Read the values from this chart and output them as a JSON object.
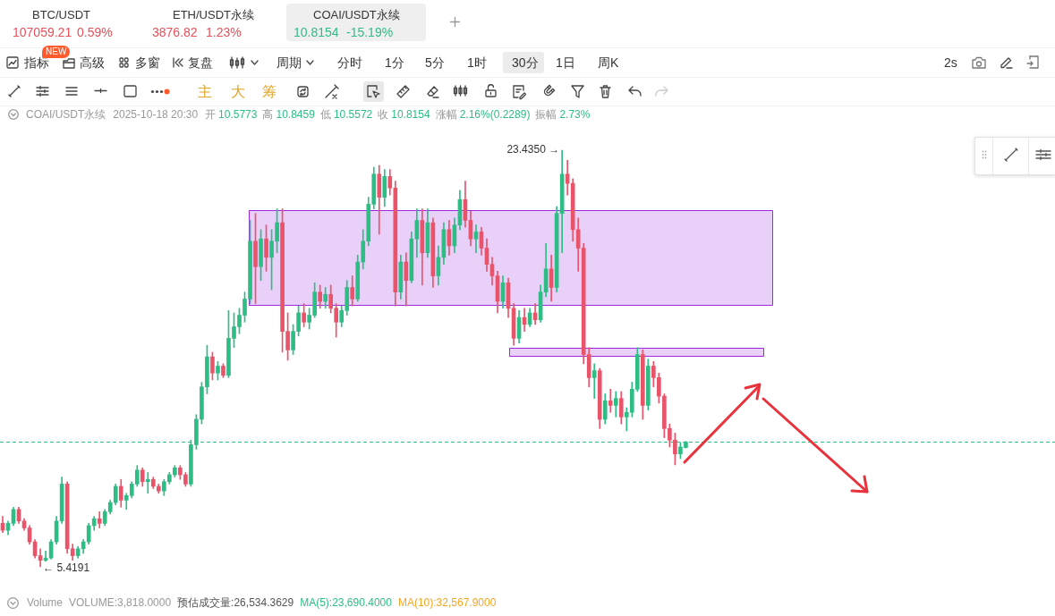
{
  "chart_data": {
    "type": "candlestick",
    "categories": [
      null,
      null,
      null,
      null,
      null,
      null,
      null,
      null,
      null,
      null,
      null,
      null,
      null,
      null,
      null,
      null,
      null,
      null,
      null,
      null,
      null,
      null,
      null,
      null,
      null,
      null,
      null,
      null,
      null,
      null,
      null,
      null,
      null,
      null,
      null,
      null,
      null,
      null,
      null,
      null,
      null,
      null,
      null,
      null,
      null,
      null,
      null,
      null,
      null,
      null,
      null,
      null,
      null,
      null,
      null,
      null,
      null,
      null,
      null,
      null,
      null,
      null,
      null,
      null,
      null,
      null,
      null,
      null,
      null,
      null,
      null,
      null,
      null,
      null,
      null,
      null,
      null,
      null,
      null,
      null,
      null,
      null,
      null,
      null,
      null,
      null,
      null,
      null,
      null,
      null,
      null,
      null,
      null,
      null,
      null,
      null,
      null,
      null,
      null,
      null,
      null,
      null,
      null,
      null,
      null,
      null,
      null,
      null,
      null,
      null,
      null,
      null,
      null,
      null,
      null,
      null,
      null,
      null,
      null,
      null,
      null,
      null,
      null,
      null,
      null,
      null,
      null,
      null,
      null,
      null,
      null,
      null,
      null,
      null,
      null,
      null,
      null,
      null,
      null,
      null,
      null,
      null,
      null,
      null,
      null,
      null,
      null,
      null,
      null,
      null,
      null,
      null,
      null,
      null,
      null,
      null,
      null,
      null,
      null,
      null,
      null,
      null,
      null,
      null,
      null,
      null,
      null,
      null,
      null,
      null,
      null,
      null,
      null,
      null,
      null,
      null,
      null,
      null,
      null,
      null,
      null
    ],
    "ohlc": [
      [
        7.3,
        7.6,
        6.9,
        7.0
      ],
      [
        7.0,
        7.4,
        6.8,
        7.3
      ],
      [
        7.3,
        8.0,
        7.2,
        7.9
      ],
      [
        7.9,
        8.0,
        7.3,
        7.4
      ],
      [
        7.4,
        7.5,
        7.0,
        7.1
      ],
      [
        7.1,
        7.2,
        6.4,
        6.5
      ],
      [
        6.5,
        6.6,
        5.8,
        5.9
      ],
      [
        5.9,
        6.2,
        5.4191,
        5.7
      ],
      [
        5.7,
        6.1,
        5.65,
        5.8
      ],
      [
        5.8,
        6.6,
        5.75,
        6.5
      ],
      [
        6.5,
        7.6,
        6.4,
        7.4
      ],
      [
        7.4,
        9.3,
        7.3,
        9.0
      ],
      [
        9.0,
        9.1,
        6.0,
        6.2
      ],
      [
        6.2,
        6.4,
        5.7,
        5.9
      ],
      [
        5.9,
        6.3,
        5.8,
        6.2
      ],
      [
        6.2,
        6.6,
        6.0,
        6.5
      ],
      [
        6.5,
        7.3,
        6.4,
        7.2
      ],
      [
        7.2,
        7.6,
        7.0,
        7.5
      ],
      [
        7.5,
        7.8,
        7.1,
        7.3
      ],
      [
        7.3,
        7.9,
        7.2,
        7.8
      ],
      [
        7.8,
        8.3,
        7.7,
        8.2
      ],
      [
        8.2,
        9.0,
        8.1,
        8.9
      ],
      [
        8.9,
        9.2,
        8.0,
        8.3
      ],
      [
        8.3,
        8.6,
        7.9,
        8.5
      ],
      [
        8.5,
        9.1,
        8.4,
        9.0
      ],
      [
        9.0,
        9.8,
        8.9,
        9.6
      ],
      [
        9.6,
        9.7,
        8.9,
        9.1
      ],
      [
        9.1,
        9.5,
        8.6,
        9.2
      ],
      [
        9.2,
        9.3,
        8.8,
        8.9
      ],
      [
        8.9,
        9.0,
        8.6,
        8.7
      ],
      [
        8.7,
        9.2,
        8.5,
        9.1
      ],
      [
        9.1,
        9.5,
        9.0,
        9.4
      ],
      [
        9.4,
        9.8,
        9.3,
        9.7
      ],
      [
        9.7,
        9.8,
        9.2,
        9.4
      ],
      [
        9.4,
        9.5,
        8.9,
        9.0
      ],
      [
        9.0,
        10.9,
        8.9,
        10.7
      ],
      [
        10.7,
        12.0,
        10.5,
        11.8
      ],
      [
        11.8,
        13.4,
        11.6,
        13.2
      ],
      [
        13.2,
        15.0,
        12.9,
        14.5
      ],
      [
        14.5,
        14.7,
        13.5,
        13.8
      ],
      [
        13.8,
        14.3,
        13.5,
        14.1
      ],
      [
        14.1,
        14.2,
        13.6,
        13.7
      ],
      [
        13.7,
        16.5,
        13.6,
        15.3
      ],
      [
        15.3,
        16.4,
        14.9,
        15.8
      ],
      [
        15.8,
        16.6,
        15.5,
        16.3
      ],
      [
        16.3,
        17.3,
        16.0,
        17.0
      ],
      [
        17.0,
        20.4,
        16.8,
        19.5
      ],
      [
        19.5,
        20.7,
        16.8,
        18.4
      ],
      [
        18.4,
        20.0,
        17.8,
        19.6
      ],
      [
        19.6,
        20.2,
        18.2,
        18.8
      ],
      [
        18.8,
        20.0,
        17.4,
        19.5
      ],
      [
        19.5,
        20.9,
        19.0,
        20.3
      ],
      [
        20.3,
        20.9,
        14.7,
        15.6
      ],
      [
        15.6,
        16.4,
        14.35,
        14.8
      ],
      [
        14.8,
        15.9,
        14.6,
        15.6
      ],
      [
        15.6,
        16.7,
        15.4,
        16.4
      ],
      [
        16.4,
        16.8,
        15.8,
        16.0
      ],
      [
        16.0,
        16.6,
        15.7,
        16.3
      ],
      [
        16.3,
        17.7,
        16.2,
        17.3
      ],
      [
        17.3,
        17.6,
        16.6,
        16.9
      ],
      [
        16.9,
        17.5,
        16.6,
        17.2
      ],
      [
        17.2,
        17.6,
        16.4,
        16.6
      ],
      [
        16.6,
        16.8,
        15.35,
        16.0
      ],
      [
        16.0,
        16.7,
        15.8,
        16.5
      ],
      [
        16.5,
        17.8,
        16.3,
        17.5
      ],
      [
        17.5,
        18.0,
        16.7,
        17.0
      ],
      [
        17.0,
        18.9,
        16.9,
        18.6
      ],
      [
        18.6,
        20.0,
        18.3,
        19.5
      ],
      [
        19.5,
        21.4,
        19.3,
        21.1
      ],
      [
        21.1,
        22.7,
        20.9,
        22.4
      ],
      [
        22.4,
        22.78,
        19.8,
        21.4
      ],
      [
        21.4,
        22.6,
        21.0,
        22.3
      ],
      [
        22.3,
        22.6,
        21.5,
        21.8
      ],
      [
        21.8,
        22.1,
        16.7,
        17.3
      ],
      [
        17.3,
        18.9,
        17.0,
        18.6
      ],
      [
        18.6,
        19.0,
        16.7,
        17.8
      ],
      [
        17.8,
        19.9,
        17.7,
        19.6
      ],
      [
        19.6,
        20.9,
        18.8,
        20.4
      ],
      [
        20.4,
        20.9,
        17.6,
        19.0
      ],
      [
        19.0,
        20.9,
        18.8,
        20.3
      ],
      [
        20.3,
        20.5,
        17.5,
        18.0
      ],
      [
        18.0,
        19.3,
        17.6,
        18.8
      ],
      [
        18.8,
        20.3,
        18.5,
        20.0
      ],
      [
        20.0,
        20.4,
        18.9,
        19.3
      ],
      [
        19.3,
        20.5,
        19.0,
        20.2
      ],
      [
        20.2,
        21.7,
        20.0,
        21.3
      ],
      [
        21.3,
        22.1,
        20.1,
        20.4
      ],
      [
        20.4,
        20.8,
        19.3,
        19.6
      ],
      [
        19.6,
        20.2,
        19.0,
        19.9
      ],
      [
        19.9,
        20.1,
        18.9,
        19.2
      ],
      [
        19.2,
        19.6,
        18.2,
        18.5
      ],
      [
        18.5,
        18.8,
        17.6,
        18.0
      ],
      [
        18.0,
        18.2,
        16.4,
        16.9
      ],
      [
        16.9,
        18.0,
        16.6,
        17.7
      ],
      [
        17.7,
        17.9,
        16.2,
        16.6
      ],
      [
        16.6,
        16.8,
        15.0,
        15.3
      ],
      [
        15.3,
        16.5,
        15.1,
        16.2
      ],
      [
        16.2,
        16.6,
        15.6,
        15.9
      ],
      [
        15.9,
        16.6,
        15.8,
        16.4
      ],
      [
        16.4,
        16.8,
        15.9,
        16.1
      ],
      [
        16.1,
        17.6,
        16.0,
        17.3
      ],
      [
        17.3,
        19.4,
        17.1,
        18.3
      ],
      [
        18.3,
        18.9,
        16.9,
        17.5
      ],
      [
        17.5,
        21.0,
        17.3,
        20.7
      ],
      [
        20.7,
        23.435,
        19.0,
        22.4
      ],
      [
        22.4,
        23.0,
        21.5,
        22.0
      ],
      [
        22.0,
        22.2,
        19.5,
        20.0
      ],
      [
        20.0,
        20.5,
        18.2,
        19.2
      ],
      [
        19.2,
        19.4,
        14.2,
        14.6
      ],
      [
        14.6,
        14.9,
        13.2,
        13.6
      ],
      [
        13.6,
        14.2,
        12.7,
        13.9
      ],
      [
        13.9,
        14.0,
        11.4,
        11.8
      ],
      [
        11.8,
        12.9,
        11.6,
        12.6
      ],
      [
        12.6,
        13.1,
        12.1,
        12.4
      ],
      [
        12.4,
        13.0,
        11.9,
        12.7
      ],
      [
        12.7,
        13.0,
        11.6,
        11.9
      ],
      [
        11.9,
        12.3,
        11.3,
        12.1
      ],
      [
        12.1,
        13.4,
        11.9,
        13.1
      ],
      [
        13.1,
        14.9,
        13.0,
        14.6
      ],
      [
        14.6,
        14.8,
        11.8,
        12.4
      ],
      [
        12.4,
        14.4,
        12.2,
        14.1
      ],
      [
        14.1,
        14.3,
        13.2,
        13.6
      ],
      [
        13.6,
        13.8,
        12.5,
        12.8
      ],
      [
        12.8,
        12.9,
        11.0,
        11.4
      ],
      [
        11.4,
        11.6,
        10.6,
        10.9
      ],
      [
        10.9,
        11.2,
        9.83,
        10.3
      ],
      [
        10.3,
        10.8,
        10.1,
        10.6
      ],
      [
        10.5773,
        10.8459,
        10.5572,
        10.8154
      ],
      null,
      null,
      null,
      null,
      null,
      null,
      null,
      null,
      null,
      null,
      null,
      null,
      null,
      null,
      null,
      null,
      null,
      null,
      null,
      null,
      null,
      null,
      null,
      null,
      null,
      null,
      null,
      null,
      null,
      null,
      null,
      null,
      null,
      null,
      null,
      null,
      null,
      null,
      null,
      null,
      null,
      null,
      null,
      null,
      null,
      null,
      null,
      null,
      null,
      null,
      null,
      null,
      null
    ],
    "colors": [
      "#e9546b",
      "#2ebd85",
      "#2ebd85",
      "#e9546b",
      "#e9546b",
      "#e9546b",
      "#e9546b",
      "#e9546b",
      "#2ebd85",
      "#2ebd85",
      "#2ebd85",
      "#2ebd85",
      "#e9546b",
      "#e9546b",
      "#2ebd85",
      "#2ebd85",
      "#2ebd85",
      "#2ebd85",
      "#e9546b",
      "#2ebd85",
      "#2ebd85",
      "#2ebd85",
      "#e9546b",
      "#2ebd85",
      "#2ebd85",
      "#2ebd85",
      "#e9546b",
      "#2ebd85",
      "#e9546b",
      "#e9546b",
      "#2ebd85",
      "#2ebd85",
      "#2ebd85",
      "#e9546b",
      "#e9546b",
      "#2ebd85",
      "#2ebd85",
      "#2ebd85",
      "#2ebd85",
      "#e9546b",
      "#2ebd85",
      "#e9546b",
      "#2ebd85",
      "#2ebd85",
      "#2ebd85",
      "#2ebd85",
      "#2ebd85",
      "#e9546b",
      "#2ebd85",
      "#e9546b",
      "#2ebd85",
      "#2ebd85",
      "#e9546b",
      "#e9546b",
      "#2ebd85",
      "#2ebd85",
      "#e9546b",
      "#2ebd85",
      "#2ebd85",
      "#e9546b",
      "#2ebd85",
      "#e9546b",
      "#e9546b",
      "#2ebd85",
      "#2ebd85",
      "#e9546b",
      "#2ebd85",
      "#2ebd85",
      "#2ebd85",
      "#2ebd85",
      "#e9546b",
      "#2ebd85",
      "#e9546b",
      "#e9546b",
      "#2ebd85",
      "#e9546b",
      "#2ebd85",
      "#2ebd85",
      "#e9546b",
      "#2ebd85",
      "#e9546b",
      "#2ebd85",
      "#2ebd85",
      "#e9546b",
      "#2ebd85",
      "#2ebd85",
      "#e9546b",
      "#e9546b",
      "#2ebd85",
      "#e9546b",
      "#e9546b",
      "#e9546b",
      "#e9546b",
      "#2ebd85",
      "#e9546b",
      "#e9546b",
      "#2ebd85",
      "#e9546b",
      "#2ebd85",
      "#e9546b",
      "#2ebd85",
      "#2ebd85",
      "#e9546b",
      "#2ebd85",
      "#2ebd85",
      "#e9546b",
      "#e9546b",
      "#e9546b",
      "#e9546b",
      "#e9546b",
      "#2ebd85",
      "#e9546b",
      "#2ebd85",
      "#e9546b",
      "#2ebd85",
      "#e9546b",
      "#2ebd85",
      "#2ebd85",
      "#2ebd85",
      "#e9546b",
      "#2ebd85",
      "#e9546b",
      "#e9546b",
      "#e9546b",
      "#e9546b",
      "#e9546b",
      "#2ebd85",
      "#2ebd85",
      null,
      null,
      null,
      null,
      null,
      null,
      null,
      null,
      null,
      null,
      null,
      null,
      null,
      null,
      null,
      null,
      null,
      null,
      null,
      null,
      null,
      null,
      null,
      null,
      null,
      null,
      null,
      null,
      null,
      null,
      null,
      null,
      null,
      null,
      null,
      null,
      null,
      null,
      null,
      null,
      null,
      null,
      null,
      null,
      null,
      null,
      null,
      null,
      null,
      null,
      null,
      null,
      null
    ],
    "bands": [
      {
        "axis": "y",
        "from": 16.75,
        "to": 20.84,
        "color": "#9c27e0"
      },
      {
        "axis": "y",
        "from": 14.53,
        "to": 14.88,
        "color": "#9c27e0"
      }
    ],
    "ref_lines": [
      {
        "axis": "y",
        "value": 10.8154,
        "color": "#2ebd85",
        "line_style": "dashed"
      }
    ],
    "annotations": [
      "BTC/USDT",
      "107059.21",
      "0.59%",
      "ETH/USDT永续",
      "3876.82",
      "1.23%",
      "COAI/USDT永续",
      "10.8154",
      "-15.19%",
      "NEW",
      "指标",
      "高级",
      "多窗",
      "复盘",
      "周期",
      "分时",
      "1分",
      "5分",
      "1时",
      "30分",
      "1日",
      "周K",
      "2s",
      "主",
      "大",
      "筹",
      "COAI/USDT永续",
      "2025-10-18 20:30",
      "开",
      "10.5773",
      "高",
      "10.8459",
      "低",
      "10.5572",
      "收",
      "10.8154",
      "涨幅",
      "2.16%(0.2289)",
      "振幅",
      "2.73%",
      "Volume",
      "VOLUME:3,818.0000",
      "预估成交量:26,534.3629",
      "MA(5):23,690.4000",
      "MA(10):32,567.9000",
      "23.4350 →",
      "← 5.4191"
    ]
  }
}
